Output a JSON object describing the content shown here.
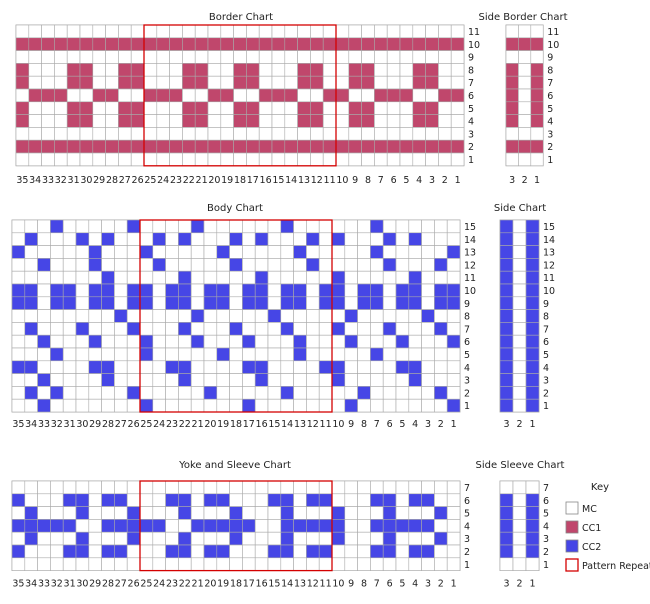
{
  "colors": {
    "MC": "#ffffff",
    "CC1": "#c0476c",
    "CC2": "#4646e6",
    "grid": "#a9a9a9",
    "repeat": "#d40000"
  },
  "charts": {
    "border": {
      "title": "Border Chart",
      "cols": 35,
      "repeat_cols": [
        11,
        25
      ],
      "col_labels": [
        "35",
        "34",
        "33",
        "32",
        "31",
        "30",
        "29",
        "28",
        "27",
        "26",
        "25",
        "24",
        "23",
        "22",
        "21",
        "20",
        "19",
        "18",
        "17",
        "16",
        "15",
        "14",
        "13",
        "12",
        "11",
        "10",
        "9",
        "8",
        "7",
        "6",
        "5",
        "4",
        "3",
        "2",
        "1"
      ],
      "row_labels": [
        "11",
        "10",
        "9",
        "8",
        "7",
        "6",
        "5",
        "4",
        "3",
        "2",
        "1"
      ],
      "rows": [
        "00000000000000000000000000000000000",
        "11111111111111111111111111111111111",
        "00000000000000000000000000000000000",
        "10001100110001100110001100110001100",
        "10001100110001100110001100110001100",
        "01110011001110011001110011001110011",
        "10001100110001100110001100110001100",
        "10001100110001100110001100110001100",
        "00000000000000000000000000000000000",
        "11111111111111111111111111111111111",
        "00000000000000000000000000000000000"
      ]
    },
    "side_border": {
      "title": "Side Border Chart",
      "cols": 3,
      "col_labels": [
        "3",
        "2",
        "1"
      ],
      "row_labels": [
        "11",
        "10",
        "9",
        "8",
        "7",
        "6",
        "5",
        "4",
        "3",
        "2",
        "1"
      ],
      "rows": [
        "000",
        "111",
        "000",
        "101",
        "101",
        "101",
        "101",
        "101",
        "000",
        "111",
        "000"
      ]
    },
    "body": {
      "title": "Body Chart",
      "cols": 35,
      "repeat_cols": [
        11,
        25
      ],
      "col_labels": [
        "35",
        "34",
        "33",
        "32",
        "31",
        "30",
        "29",
        "28",
        "27",
        "26",
        "25",
        "24",
        "23",
        "22",
        "21",
        "20",
        "19",
        "18",
        "17",
        "16",
        "15",
        "14",
        "13",
        "12",
        "11",
        "10",
        "9",
        "8",
        "7",
        "6",
        "5",
        "4",
        "3",
        "2",
        "1"
      ],
      "row_labels": [
        "15",
        "14",
        "13",
        "12",
        "11",
        "10",
        "9",
        "8",
        "7",
        "6",
        "5",
        "4",
        "3",
        "2",
        "1"
      ],
      "rows": [
        "00010000010000100000010000001000000",
        "01000101000101000101000101000101000",
        "10000010001000001000001000001000001",
        "00100010000100000100000100000100010",
        "00000001000001000001000001000001000",
        "11011011011011011011011011011011011",
        "11011011011011011011011011011011011",
        "00000000100000100000100000100000100",
        "01000100010001000100010001000100010",
        "00100010001000100010001000100010001",
        "00010000001000001000001000001000000",
        "11000011000011000011000011000011000",
        "00100001000001000001000001000001000",
        "01010000010000010000010000010000010",
        "00100000001000000010000000100000001"
      ]
    },
    "side": {
      "title": "Side Chart",
      "cols": 3,
      "col_labels": [
        "3",
        "2",
        "1"
      ],
      "row_labels": [
        "15",
        "14",
        "13",
        "12",
        "11",
        "10",
        "9",
        "8",
        "7",
        "6",
        "5",
        "4",
        "3",
        "2",
        "1"
      ],
      "rows": [
        "101",
        "101",
        "101",
        "101",
        "101",
        "101",
        "101",
        "101",
        "101",
        "101",
        "101",
        "101",
        "101",
        "101",
        "101"
      ]
    },
    "yoke": {
      "title": "Yoke and Sleeve Chart",
      "cols": 35,
      "repeat_cols": [
        11,
        25
      ],
      "col_labels": [
        "35",
        "34",
        "33",
        "32",
        "31",
        "30",
        "29",
        "28",
        "27",
        "26",
        "25",
        "24",
        "23",
        "22",
        "21",
        "20",
        "19",
        "18",
        "17",
        "16",
        "15",
        "14",
        "13",
        "12",
        "11",
        "10",
        "9",
        "8",
        "7",
        "6",
        "5",
        "4",
        "3",
        "2",
        "1"
      ],
      "row_labels": [
        "7",
        "6",
        "5",
        "4",
        "3",
        "2",
        "1"
      ],
      "rows": [
        "00000000000000000000000000000000000",
        "10001101100011011000110110001101100",
        "01000100010001000100010001000100010",
        "11111001111100111110011111001111100",
        "01000100010001000100010001000100010",
        "10001101100011011000110110001101100",
        "00000000000000000000000000000000000"
      ]
    },
    "side_sleeve": {
      "title": "Side Sleeve Chart",
      "cols": 3,
      "col_labels": [
        "3",
        "2",
        "1"
      ],
      "row_labels": [
        "7",
        "6",
        "5",
        "4",
        "3",
        "2",
        "1"
      ],
      "rows": [
        "000",
        "101",
        "101",
        "101",
        "101",
        "101",
        "000"
      ]
    }
  },
  "key": {
    "title": "Key",
    "items": [
      {
        "label": "MC",
        "swatch": "MC"
      },
      {
        "label": "CC1",
        "swatch": "CC1"
      },
      {
        "label": "CC2",
        "swatch": "CC2"
      },
      {
        "label": "Pattern Repeat",
        "swatch": "repeat"
      }
    ]
  }
}
